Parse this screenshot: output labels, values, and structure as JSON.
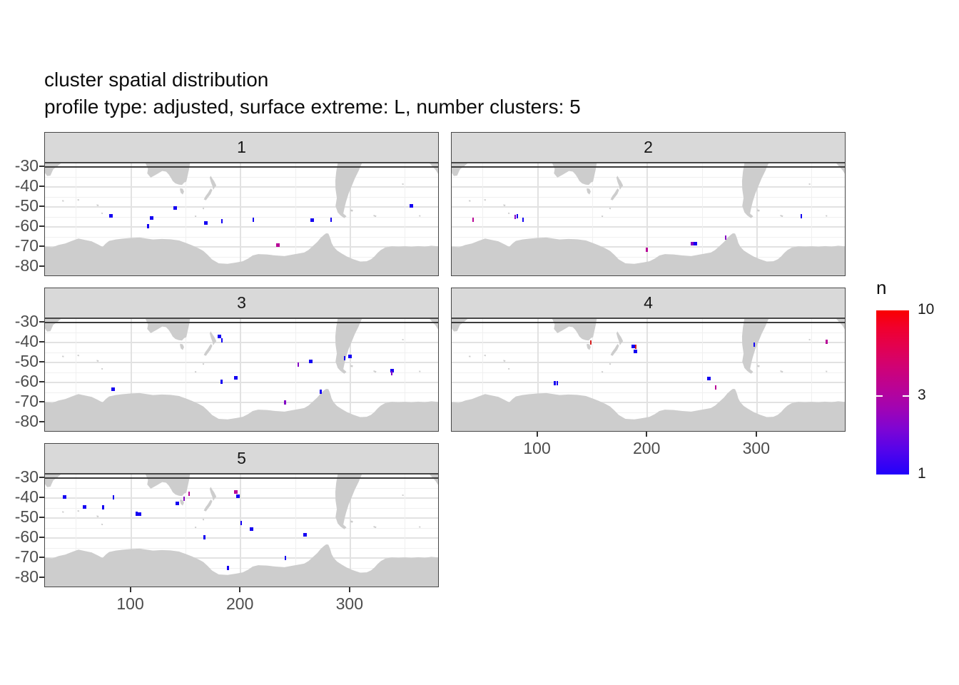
{
  "chart_data": {
    "type": "scatter",
    "title": "cluster spatial distribution",
    "subtitle": "profile type: adjusted, surface extreme: L, number clusters: 5",
    "xlabel": "",
    "ylabel": "",
    "x_ticks": [
      100,
      200,
      300
    ],
    "x_minor_ticks": [
      50,
      150,
      250,
      350
    ],
    "y_ticks": [
      -30,
      -40,
      -50,
      -60,
      -70,
      -80
    ],
    "y_minor_ticks": [
      -35,
      -45,
      -55,
      -65,
      -75
    ],
    "xlim": [
      21.5,
      381.5
    ],
    "ylim": [
      -85,
      -28.2
    ],
    "grid": true,
    "reference_line_lat": -30,
    "legend": {
      "title": "n",
      "tick_labels": [
        "10",
        "3",
        "1"
      ],
      "tick_values": [
        10,
        3,
        1
      ],
      "scale": "log10",
      "low_color": "#0000FF",
      "high_color": "#FF0000",
      "position": "right"
    },
    "point_colors_by_n": {
      "1": "#1502f2",
      "2": "#8406c6",
      "3": "#b80397",
      "8": "#d51f1f"
    },
    "land_color": "#cdcdcd",
    "facets": [
      {
        "label": "1",
        "points": [
          [
            81.5,
            -54.5,
            1,
            "sq"
          ],
          [
            140,
            -50.5,
            1,
            "sq"
          ],
          [
            118.5,
            -55.5,
            1,
            "sq"
          ],
          [
            115.5,
            -59.5,
            1,
            "tk"
          ],
          [
            168.5,
            -58,
            1,
            "sq"
          ],
          [
            183,
            -57,
            1,
            "tk"
          ],
          [
            211.5,
            -56.5,
            1,
            "tk"
          ],
          [
            265,
            -56.5,
            1,
            "sq"
          ],
          [
            282.5,
            -56.5,
            1,
            "tk"
          ],
          [
            356,
            -49.5,
            1,
            "sq"
          ],
          [
            234,
            -69,
            3,
            "sq"
          ]
        ]
      },
      {
        "label": "2",
        "points": [
          [
            41,
            -56.5,
            3,
            "tk"
          ],
          [
            79.5,
            -55,
            2,
            "tk"
          ],
          [
            81.5,
            -54.5,
            1,
            "tk"
          ],
          [
            86.5,
            -56.5,
            1,
            "tk"
          ],
          [
            340.5,
            -54.5,
            1,
            "tk"
          ],
          [
            271.5,
            -65.5,
            2,
            "tk"
          ],
          [
            241.5,
            -68.5,
            2,
            "sq"
          ],
          [
            244,
            -68.5,
            1,
            "sq"
          ],
          [
            199.5,
            -71.5,
            3,
            "tk"
          ]
        ]
      },
      {
        "label": "3",
        "points": [
          [
            180.5,
            -37,
            1,
            "sq"
          ],
          [
            183,
            -39,
            1,
            "tk"
          ],
          [
            264,
            -49.5,
            1,
            "sq"
          ],
          [
            252.5,
            -51,
            2,
            "tk"
          ],
          [
            295,
            -48,
            1,
            "tk"
          ],
          [
            299.5,
            -47,
            1,
            "sq"
          ],
          [
            338,
            -54,
            1,
            "sq"
          ],
          [
            338,
            -55.5,
            2,
            "tk"
          ],
          [
            195.5,
            -57.5,
            1,
            "sq"
          ],
          [
            182.5,
            -59.5,
            1,
            "tk"
          ],
          [
            83.5,
            -63.5,
            1,
            "sq"
          ],
          [
            273,
            -64.5,
            1,
            "tk"
          ],
          [
            240.5,
            -70,
            2,
            "tk"
          ]
        ]
      },
      {
        "label": "4",
        "points": [
          [
            148.5,
            -40,
            8,
            "tk"
          ],
          [
            187.5,
            -42,
            1,
            "sq"
          ],
          [
            189.5,
            -42,
            8,
            "tk"
          ],
          [
            189,
            -44.5,
            1,
            "sq"
          ],
          [
            297.5,
            -41,
            1,
            "tk"
          ],
          [
            363.5,
            -39.5,
            3,
            "tk"
          ],
          [
            256,
            -58,
            1,
            "sq"
          ],
          [
            262.5,
            -62.5,
            3,
            "tk"
          ],
          [
            115.5,
            -60.5,
            1,
            "tk"
          ],
          [
            118,
            -60.5,
            1,
            "tk"
          ]
        ]
      },
      {
        "label": "5",
        "points": [
          [
            39.5,
            -39.5,
            1,
            "sq"
          ],
          [
            84,
            -39.5,
            1,
            "tk"
          ],
          [
            57.5,
            -44.5,
            1,
            "sq"
          ],
          [
            74.5,
            -44.5,
            1,
            "tk"
          ],
          [
            105,
            -48,
            1,
            "tk"
          ],
          [
            107.5,
            -48,
            1,
            "sq"
          ],
          [
            142,
            -42.5,
            1,
            "sq"
          ],
          [
            148.5,
            -40.5,
            2,
            "tk"
          ],
          [
            153,
            -38,
            3,
            "tk"
          ],
          [
            195.5,
            -37,
            3,
            "sq"
          ],
          [
            197.5,
            -39,
            1,
            "sq"
          ],
          [
            200.5,
            -52.5,
            1,
            "tk"
          ],
          [
            210,
            -55.5,
            1,
            "sq"
          ],
          [
            167,
            -59.5,
            1,
            "tk"
          ],
          [
            258.5,
            -58.5,
            1,
            "sq"
          ],
          [
            241,
            -70,
            1,
            "tk"
          ],
          [
            188.5,
            -75,
            1,
            "tk"
          ]
        ]
      }
    ]
  }
}
